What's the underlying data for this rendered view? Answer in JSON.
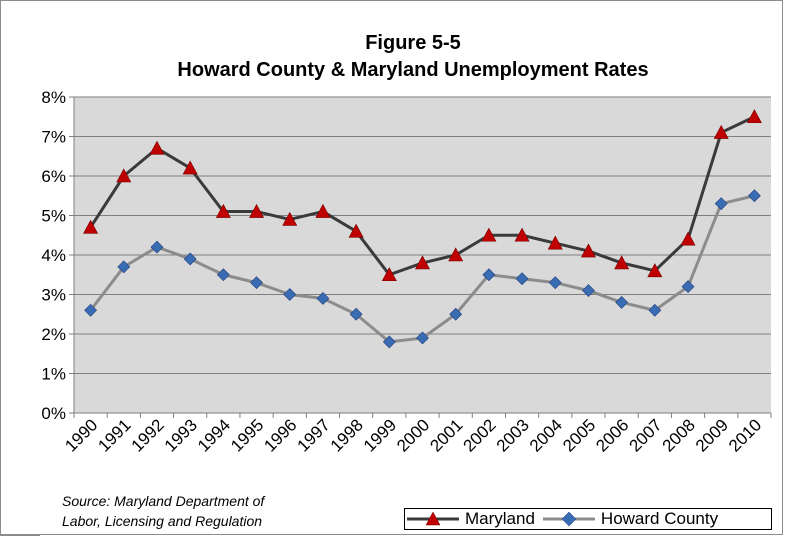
{
  "chart_data": {
    "type": "line",
    "title": "Figure 5-5",
    "subtitle": "Howard County & Maryland Unemployment Rates",
    "categories": [
      "1990",
      "1991",
      "1992",
      "1993",
      "1994",
      "1995",
      "1996",
      "1997",
      "1998",
      "1999",
      "2000",
      "2001",
      "2002",
      "2003",
      "2004",
      "2005",
      "2006",
      "2007",
      "2008",
      "2009",
      "2010"
    ],
    "series": [
      {
        "name": "Maryland",
        "values": [
          4.7,
          6.0,
          6.7,
          6.2,
          5.1,
          5.1,
          4.9,
          5.1,
          4.6,
          3.5,
          3.8,
          4.0,
          4.5,
          4.5,
          4.3,
          4.1,
          3.8,
          3.6,
          4.4,
          7.1,
          7.5
        ],
        "line_color": "#3a3a3a",
        "marker": "triangle",
        "marker_color": "#c00000"
      },
      {
        "name": "Howard County",
        "values": [
          2.6,
          3.7,
          4.2,
          3.9,
          3.5,
          3.3,
          3.0,
          2.9,
          2.5,
          1.8,
          1.9,
          2.5,
          3.5,
          3.4,
          3.3,
          3.1,
          2.8,
          2.6,
          3.2,
          5.3,
          5.5
        ],
        "line_color": "#8c8c8c",
        "marker": "diamond",
        "marker_color": "#3a6cb4"
      }
    ],
    "yticks": [
      "0%",
      "1%",
      "2%",
      "3%",
      "4%",
      "5%",
      "6%",
      "7%",
      "8%"
    ],
    "ylim": [
      0,
      8
    ],
    "grid": true,
    "plot_background": "#d9d9d9",
    "legend_position": "bottom-right"
  },
  "source_line1": "Source: Maryland Department of",
  "source_line2": "Labor, Licensing and Regulation"
}
